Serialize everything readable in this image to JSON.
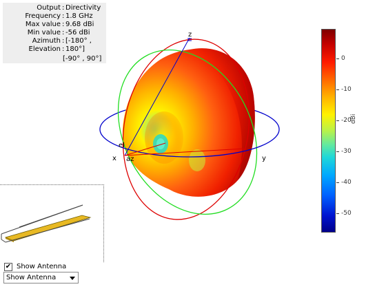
{
  "info": {
    "rows": [
      {
        "key": "Output",
        "value": "Directivity"
      },
      {
        "key": "Frequency",
        "value": "1.8 GHz"
      },
      {
        "key": "Max value",
        "value": "9.68 dBi"
      },
      {
        "key": "Min value",
        "value": "-56 dBi"
      },
      {
        "key": "Azimuth",
        "value": "[-180° ,"
      },
      {
        "key": "Elevation",
        "value": "180°]"
      }
    ],
    "elevation_range": "[-90° , 90°]"
  },
  "axes": {
    "x": "x",
    "y": "y",
    "z": "z",
    "el": "el",
    "az": "az"
  },
  "colorbar": {
    "unit": "dBi",
    "ticks": [
      "0",
      "-10",
      "-20",
      "-30",
      "-40",
      "-50"
    ]
  },
  "controls": {
    "show_antenna_checked": "✔",
    "show_antenna_label": "Show Antenna",
    "dropdown_value": "Show Antenna"
  },
  "colors": {
    "azimuth_ring": "#0000cc",
    "elevation_ring": "#22dd22",
    "third_ring": "#dd0000",
    "antenna_strip": "#e8b923",
    "pattern_max": "#8b0000",
    "pattern_min": "#00008a"
  }
}
